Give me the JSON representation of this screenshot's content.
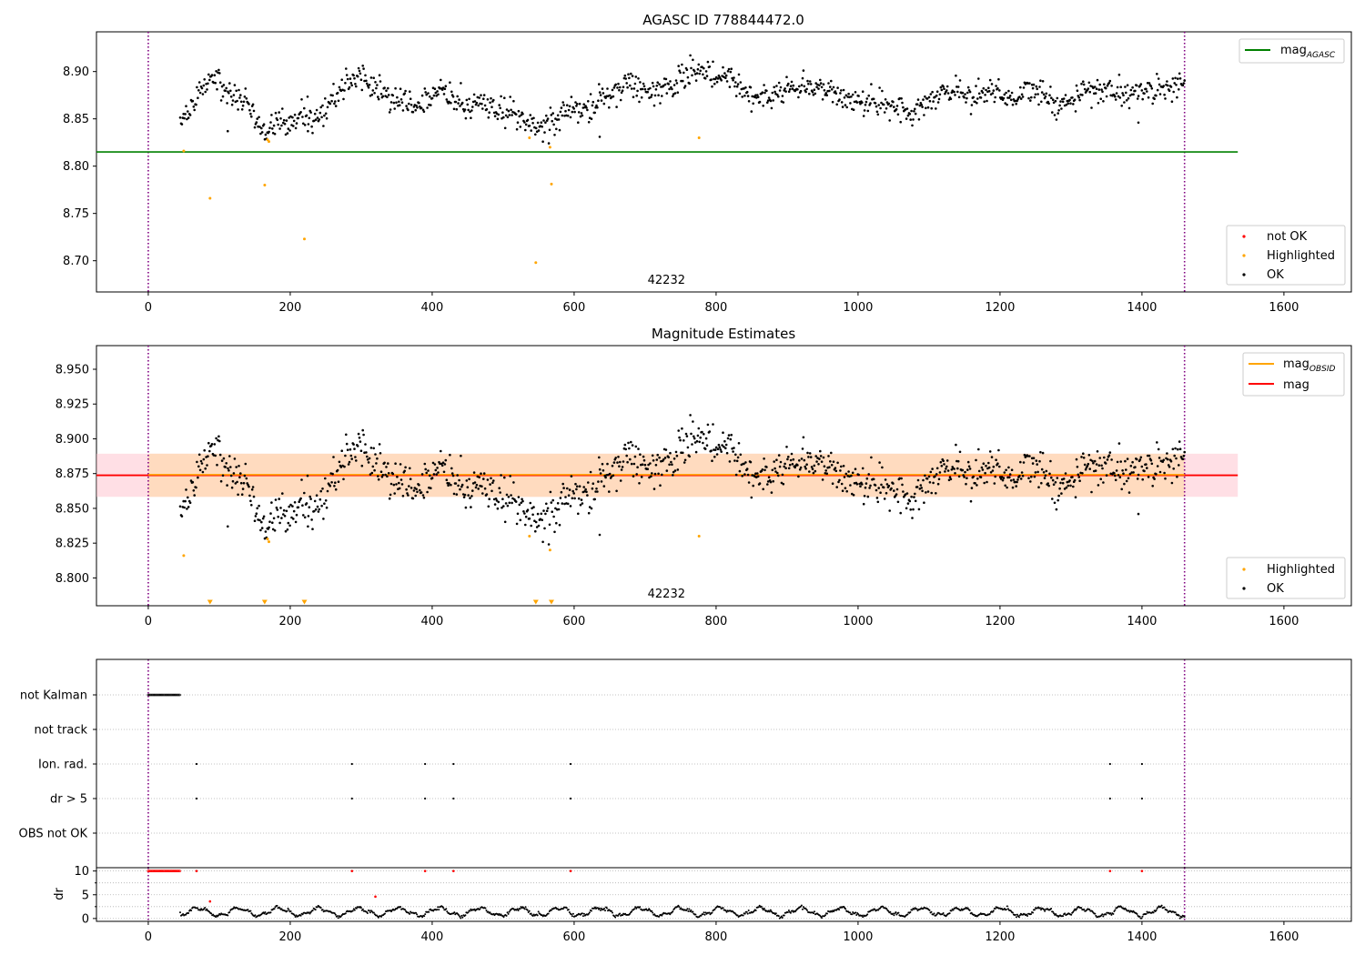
{
  "colors": {
    "ok": "#000000",
    "highlighted": "#ffa500",
    "not_ok": "#ff0000",
    "mag_agasc": "#008000",
    "mag_obsid": "#ffa500",
    "mag": "#ff0000",
    "band_outer": "#ffc0cb",
    "band_inner": "#ffdab9",
    "vline": "#800080",
    "grid": "#b0b0b0"
  },
  "chart_data": [
    {
      "type": "scatter",
      "title": "AGASC ID 778844472.0",
      "xlim": [
        -73,
        1695
      ],
      "ylim": [
        8.667,
        8.942
      ],
      "x_ticks": [
        0,
        200,
        400,
        600,
        800,
        1000,
        1200,
        1400,
        1600
      ],
      "y_ticks": [
        8.7,
        8.75,
        8.8,
        8.85,
        8.9
      ],
      "y_tick_labels": [
        "8.70",
        "8.75",
        "8.80",
        "8.85",
        "8.90"
      ],
      "obsid_label": {
        "text": "42232",
        "x": 730
      },
      "vertical_lines": [
        0,
        1460
      ],
      "hlines": [
        {
          "name": "mag",
          "subscript": "AGASC",
          "y": 8.815,
          "x_range": [
            -73,
            1535
          ]
        }
      ],
      "legend_upper": {
        "position": "upper right"
      },
      "legend_lower": {
        "position": "lower right",
        "entries": [
          "not OK",
          "Highlighted",
          "OK"
        ]
      },
      "ok_series": {
        "name": "OK",
        "x_range": [
          45,
          1460
        ],
        "knots": [
          [
            45,
            8.843
          ],
          [
            65,
            8.862
          ],
          [
            78,
            8.888
          ],
          [
            90,
            8.895
          ],
          [
            100,
            8.892
          ],
          [
            110,
            8.882
          ],
          [
            125,
            8.875
          ],
          [
            140,
            8.866
          ],
          [
            155,
            8.848
          ],
          [
            170,
            8.838
          ],
          [
            185,
            8.852
          ],
          [
            200,
            8.842
          ],
          [
            215,
            8.856
          ],
          [
            235,
            8.852
          ],
          [
            255,
            8.862
          ],
          [
            275,
            8.885
          ],
          [
            290,
            8.895
          ],
          [
            310,
            8.893
          ],
          [
            325,
            8.879
          ],
          [
            345,
            8.866
          ],
          [
            365,
            8.87
          ],
          [
            385,
            8.865
          ],
          [
            400,
            8.872
          ],
          [
            415,
            8.882
          ],
          [
            430,
            8.868
          ],
          [
            450,
            8.864
          ],
          [
            470,
            8.869
          ],
          [
            490,
            8.858
          ],
          [
            510,
            8.86
          ],
          [
            530,
            8.844
          ],
          [
            550,
            8.841
          ],
          [
            570,
            8.847
          ],
          [
            585,
            8.852
          ],
          [
            600,
            8.862
          ],
          [
            620,
            8.858
          ],
          [
            640,
            8.872
          ],
          [
            660,
            8.882
          ],
          [
            680,
            8.887
          ],
          [
            700,
            8.879
          ],
          [
            720,
            8.883
          ],
          [
            740,
            8.882
          ],
          [
            760,
            8.897
          ],
          [
            780,
            8.902
          ],
          [
            800,
            8.896
          ],
          [
            820,
            8.898
          ],
          [
            830,
            8.88
          ],
          [
            850,
            8.878
          ],
          [
            880,
            8.873
          ],
          [
            900,
            8.885
          ],
          [
            920,
            8.884
          ],
          [
            940,
            8.884
          ],
          [
            960,
            8.881
          ],
          [
            980,
            8.87
          ],
          [
            1000,
            8.871
          ],
          [
            1020,
            8.866
          ],
          [
            1040,
            8.866
          ],
          [
            1060,
            8.858
          ],
          [
            1080,
            8.855
          ],
          [
            1100,
            8.868
          ],
          [
            1120,
            8.879
          ],
          [
            1140,
            8.882
          ],
          [
            1160,
            8.872
          ],
          [
            1180,
            8.88
          ],
          [
            1200,
            8.878
          ],
          [
            1220,
            8.873
          ],
          [
            1240,
            8.879
          ],
          [
            1260,
            8.877
          ],
          [
            1280,
            8.862
          ],
          [
            1300,
            8.866
          ],
          [
            1320,
            8.883
          ],
          [
            1340,
            8.882
          ],
          [
            1360,
            8.879
          ],
          [
            1380,
            8.875
          ],
          [
            1400,
            8.88
          ],
          [
            1420,
            8.881
          ],
          [
            1440,
            8.884
          ],
          [
            1460,
            8.886
          ]
        ],
        "noise": 0.007,
        "count": 1200,
        "outliers": [
          [
            225,
            8.837
          ],
          [
            112,
            8.837
          ],
          [
            1395,
            8.846
          ],
          [
            636,
            8.831
          ]
        ]
      },
      "highlighted_points": [
        [
          50,
          8.816
        ],
        [
          87,
          8.766
        ],
        [
          164,
          8.78
        ],
        [
          168,
          8.828
        ],
        [
          170,
          8.826
        ],
        [
          220,
          8.723
        ],
        [
          537,
          8.83
        ],
        [
          546,
          8.698
        ],
        [
          566,
          8.82
        ],
        [
          568,
          8.781
        ],
        [
          776,
          8.83
        ]
      ]
    },
    {
      "type": "scatter",
      "title": "Magnitude Estimates",
      "xlim": [
        -73,
        1695
      ],
      "ylim": [
        8.78,
        8.967
      ],
      "x_ticks": [
        0,
        200,
        400,
        600,
        800,
        1000,
        1200,
        1400,
        1600
      ],
      "y_ticks": [
        8.8,
        8.825,
        8.85,
        8.875,
        8.9,
        8.925,
        8.95
      ],
      "y_tick_labels": [
        "8.800",
        "8.825",
        "8.850",
        "8.875",
        "8.900",
        "8.925",
        "8.950"
      ],
      "obsid_label": {
        "text": "42232",
        "x": 730
      },
      "vertical_lines": [
        0,
        1460
      ],
      "mag_lines": [
        {
          "name": "mag",
          "subscript": "OBSID",
          "y": 8.8742,
          "x_range": [
            0,
            1460
          ]
        },
        {
          "name": "mag",
          "y": 8.8738,
          "x_range": [
            -73,
            1535
          ]
        }
      ],
      "band_outer": {
        "y_range": [
          8.8583,
          8.8893
        ],
        "x_range": [
          -73,
          1535
        ]
      },
      "band_inner": {
        "y_range": [
          8.8583,
          8.8893
        ],
        "x_range": [
          0,
          1460
        ]
      },
      "legend_upper": {
        "position": "upper right"
      },
      "legend_lower": {
        "position": "lower right",
        "entries": [
          "Highlighted",
          "OK"
        ]
      },
      "highlighted_points": [
        [
          50,
          8.816
        ],
        [
          168,
          8.828
        ],
        [
          170,
          8.826
        ],
        [
          537,
          8.83
        ],
        [
          566,
          8.82
        ],
        [
          776,
          8.83
        ]
      ],
      "off_scale_markers_x": [
        87,
        164,
        220,
        546,
        568
      ]
    },
    {
      "type": "scatter",
      "xlim": [
        -73,
        1695
      ],
      "categories": [
        "not Kalman",
        "not track",
        "Ion. rad.",
        "dr > 5",
        "OBS not OK"
      ],
      "vertical_lines": [
        0,
        1460
      ],
      "not_kalman_range": [
        0,
        45
      ],
      "ion_rad_x": [
        68,
        287,
        390,
        430,
        595,
        1355,
        1400
      ],
      "dr_gt5_x": [
        68,
        287,
        390,
        430,
        595,
        1355,
        1400
      ]
    },
    {
      "type": "scatter",
      "ylabel": "dr",
      "xlim": [
        -73,
        1695
      ],
      "ylim": [
        -0.6,
        10.7
      ],
      "x_ticks": [
        0,
        200,
        400,
        600,
        800,
        1000,
        1200,
        1400,
        1600
      ],
      "x_tick_labels": [
        "0",
        "200",
        "400",
        "600",
        "800",
        "1000",
        "1200",
        "1400",
        "1600"
      ],
      "y_ticks": [
        0,
        5,
        10
      ],
      "y_tick_labels": [
        "0",
        "5",
        "10"
      ],
      "vertical_lines": [
        0,
        1460
      ],
      "not_ok_range": [
        0,
        45
      ],
      "not_ok_extra": [
        [
          68,
          10
        ],
        [
          287,
          10
        ],
        [
          390,
          10
        ],
        [
          430,
          10
        ],
        [
          595,
          10
        ],
        [
          1355,
          10
        ],
        [
          1400,
          10
        ],
        [
          87,
          3.6
        ],
        [
          320,
          4.6
        ]
      ],
      "ok_range": [
        45,
        1460
      ],
      "ok_base": 1.4
    }
  ]
}
